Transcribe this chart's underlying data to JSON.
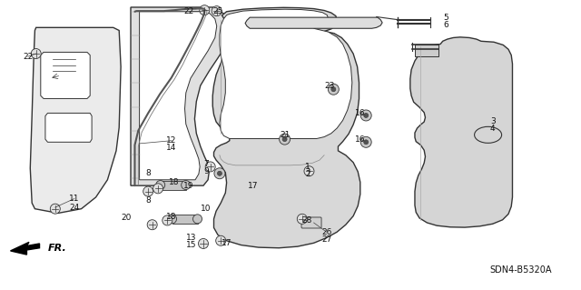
{
  "bg_color": "#ffffff",
  "line_color": "#333333",
  "gray": "#666666",
  "light_gray": "#aaaaaa",
  "dark": "#111111",
  "diagram_code": "SDN4-B5320A",
  "arrow_label": "FR.",
  "fig_width": 6.4,
  "fig_height": 3.19,
  "dpi": 100,
  "labels": {
    "22_top": [
      0.325,
      0.038,
      "22"
    ],
    "22_left": [
      0.048,
      0.195,
      "22"
    ],
    "11": [
      0.128,
      0.685,
      "11"
    ],
    "24": [
      0.128,
      0.715,
      "24"
    ],
    "12": [
      0.295,
      0.485,
      "12"
    ],
    "14": [
      0.295,
      0.51,
      "14"
    ],
    "25": [
      0.375,
      0.038,
      "25"
    ],
    "21": [
      0.49,
      0.465,
      "21"
    ],
    "7": [
      0.355,
      0.565,
      "7"
    ],
    "9": [
      0.355,
      0.59,
      "9"
    ],
    "8_top": [
      0.255,
      0.598,
      "8"
    ],
    "8_bot": [
      0.255,
      0.69,
      "8"
    ],
    "17_top": [
      0.435,
      0.64,
      "17"
    ],
    "17_bot": [
      0.39,
      0.84,
      "17"
    ],
    "18_top": [
      0.3,
      0.628,
      "18"
    ],
    "18_bot": [
      0.295,
      0.748,
      "18"
    ],
    "10": [
      0.355,
      0.718,
      "10"
    ],
    "19": [
      0.325,
      0.64,
      "19"
    ],
    "20": [
      0.218,
      0.75,
      "20"
    ],
    "13": [
      0.33,
      0.82,
      "13"
    ],
    "15": [
      0.33,
      0.845,
      "15"
    ],
    "23": [
      0.568,
      0.295,
      "23"
    ],
    "16_top": [
      0.62,
      0.39,
      "16"
    ],
    "16_bot": [
      0.62,
      0.48,
      "16"
    ],
    "5": [
      0.768,
      0.06,
      "5"
    ],
    "6": [
      0.768,
      0.085,
      "6"
    ],
    "3": [
      0.848,
      0.418,
      "3"
    ],
    "4": [
      0.848,
      0.443,
      "4"
    ],
    "1": [
      0.53,
      0.575,
      "1"
    ],
    "2": [
      0.53,
      0.6,
      "2"
    ],
    "28": [
      0.528,
      0.76,
      "28"
    ],
    "26": [
      0.562,
      0.8,
      "26"
    ],
    "27": [
      0.562,
      0.825,
      "27"
    ]
  }
}
